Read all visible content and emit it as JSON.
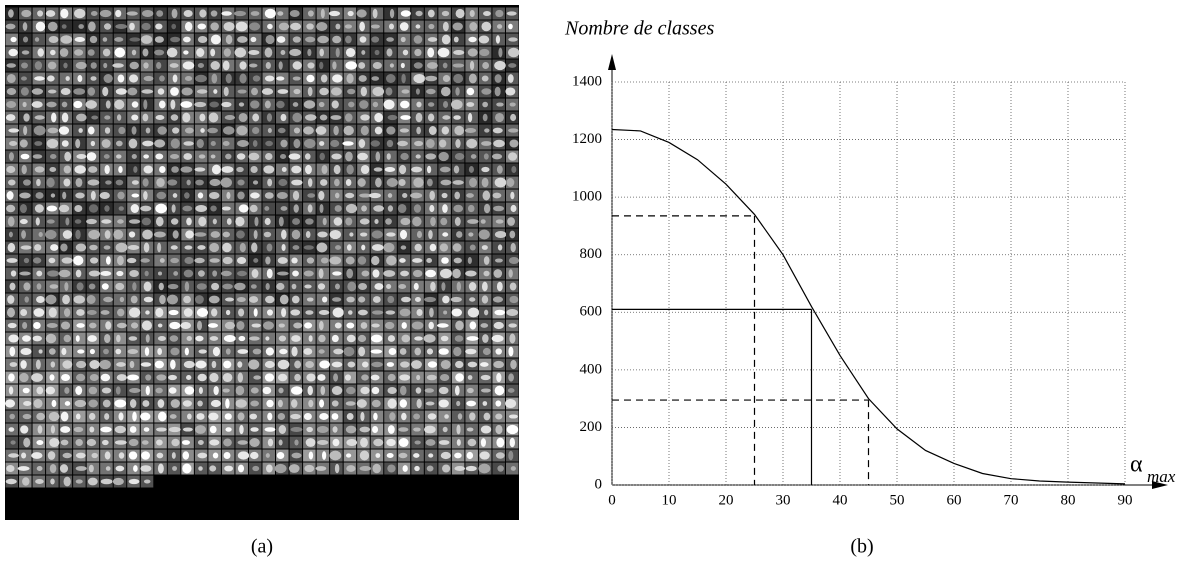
{
  "chart_data": {
    "type": "line",
    "title": "Nombre de classes",
    "xlabel": "α",
    "xlabel_sub": "max",
    "x": [
      0,
      5,
      10,
      15,
      20,
      25,
      30,
      35,
      40,
      45,
      50,
      55,
      60,
      65,
      70,
      75,
      80,
      85,
      90
    ],
    "values": [
      1235,
      1230,
      1190,
      1130,
      1045,
      940,
      800,
      620,
      450,
      300,
      195,
      120,
      75,
      40,
      22,
      14,
      10,
      7,
      4
    ],
    "color": "#000000",
    "xlim": [
      0,
      90
    ],
    "xticks": [
      0,
      10,
      20,
      30,
      40,
      50,
      60,
      70,
      80,
      90
    ],
    "ylim": [
      0,
      1400
    ],
    "yticks": [
      0,
      200,
      400,
      600,
      800,
      1000,
      1200,
      1400
    ],
    "grid": true,
    "guides": [
      {
        "x": 25,
        "y": 935,
        "dashed": true
      },
      {
        "x": 35,
        "y": 610,
        "dashed": false
      },
      {
        "x": 45,
        "y": 295,
        "dashed": true
      }
    ]
  },
  "captions": [
    "(a)",
    "(b)"
  ]
}
